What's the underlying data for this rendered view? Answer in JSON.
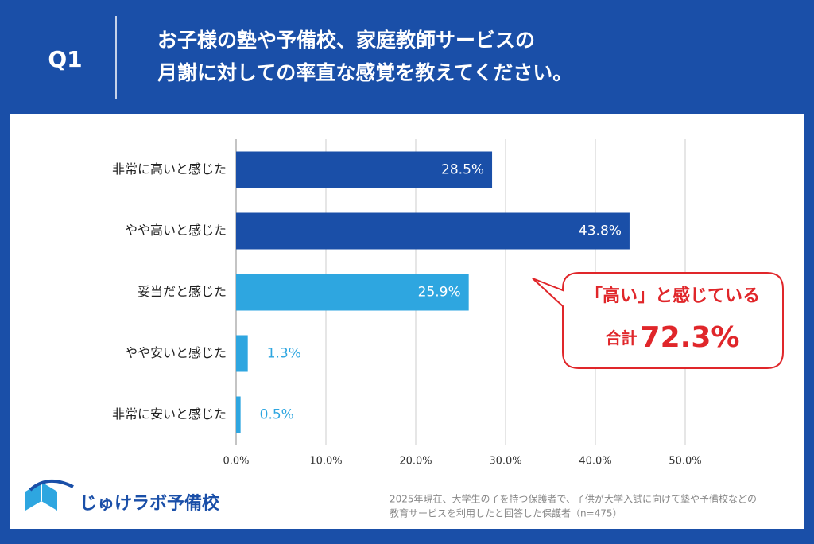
{
  "header": {
    "badge": "Q1",
    "title_lines": [
      "お子様の塾や予備校、家庭教師サービスの",
      "月謝に対しての率直な感覚を教えてください。"
    ]
  },
  "chart_data": {
    "type": "bar",
    "orientation": "horizontal",
    "categories": [
      "非常に高いと感じた",
      "やや高いと感じた",
      "妥当だと感じた",
      "やや安いと感じた",
      "非常に安いと感じた"
    ],
    "values": [
      28.5,
      43.8,
      25.9,
      1.3,
      0.5
    ],
    "value_labels": [
      "28.5%",
      "43.8%",
      "25.9%",
      "1.3%",
      "0.5%"
    ],
    "colors": [
      "#1a4fa8",
      "#1a4fa8",
      "#2ea6e0",
      "#2ea6e0",
      "#2ea6e0"
    ],
    "xlim": [
      0,
      50
    ],
    "xticks": [
      {
        "value": 0,
        "label": "0.0%"
      },
      {
        "value": 10,
        "label": "10.0%"
      },
      {
        "value": 20,
        "label": "20.0%"
      },
      {
        "value": 30,
        "label": "30.0%"
      },
      {
        "value": 40,
        "label": "40.0%"
      },
      {
        "value": 50,
        "label": "50.0%"
      }
    ],
    "grid": true,
    "callout": {
      "line1": "「高い」と感じている",
      "total_label": "合計",
      "total": "72.3%"
    }
  },
  "footer": {
    "logo": "じゅけラボ予備校",
    "note_lines": [
      "2025年現在、大学生の子を持つ保護者で、子供が大学入試に向けて塾や予備校などの",
      "教育サービスを利用したと回答した保護者（n=475）"
    ]
  }
}
